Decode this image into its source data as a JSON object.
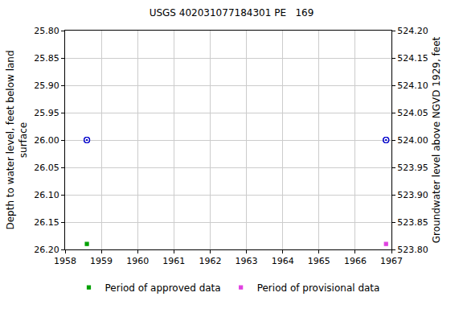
{
  "chart_data": {
    "type": "scatter",
    "title": "USGS 402031077184301 PE   169",
    "x_label": "",
    "y_label": "Depth to water level, feet below land\nsurface",
    "y2_label": "Groundwater level above NGVD 1929, feet",
    "xlim": [
      1958,
      1967
    ],
    "xticks": [
      1958,
      1959,
      1960,
      1961,
      1962,
      1963,
      1964,
      1965,
      1966,
      1967
    ],
    "ylim": [
      26.2,
      25.8
    ],
    "yticks": [
      {
        "value": 25.8,
        "label": "25.80"
      },
      {
        "value": 25.85,
        "label": "25.85"
      },
      {
        "value": 25.9,
        "label": "25.90"
      },
      {
        "value": 25.95,
        "label": "25.95"
      },
      {
        "value": 26.0,
        "label": "26.00"
      },
      {
        "value": 26.05,
        "label": "26.05"
      },
      {
        "value": 26.1,
        "label": "26.10"
      },
      {
        "value": 26.15,
        "label": "26.15"
      },
      {
        "value": 26.2,
        "label": "26.20"
      }
    ],
    "y2lim": [
      523.8,
      524.2
    ],
    "y2ticks": [
      {
        "value": 523.8,
        "label": "523.80"
      },
      {
        "value": 523.85,
        "label": "523.85"
      },
      {
        "value": 523.9,
        "label": "523.90"
      },
      {
        "value": 523.95,
        "label": "523.95"
      },
      {
        "value": 524.0,
        "label": "524.00"
      },
      {
        "value": 524.05,
        "label": "524.05"
      },
      {
        "value": 524.1,
        "label": "524.10"
      },
      {
        "value": 524.15,
        "label": "524.15"
      },
      {
        "value": 524.2,
        "label": "524.20"
      }
    ],
    "grid": true,
    "legend": "bottom",
    "series": [
      {
        "x": [
          1958.6,
          1966.85
        ],
        "values": [
          26.0,
          26.0
        ],
        "color": "#0000cc",
        "marker": "circle-open-dot"
      },
      {
        "x": [
          1958.6,
          1966.85
        ],
        "values": [
          524.0,
          524.0
        ],
        "color": "#0000cc",
        "marker": "circle-open-dot",
        "axis": "y2"
      },
      {
        "name": "Period of approved data",
        "x": [
          1958.6
        ],
        "values": [
          26.19
        ],
        "color": "#00a000",
        "marker": "square"
      },
      {
        "name": "Period of provisional data",
        "x": [
          1966.85
        ],
        "values": [
          26.19
        ],
        "color": "#e040e0",
        "marker": "square"
      }
    ]
  }
}
